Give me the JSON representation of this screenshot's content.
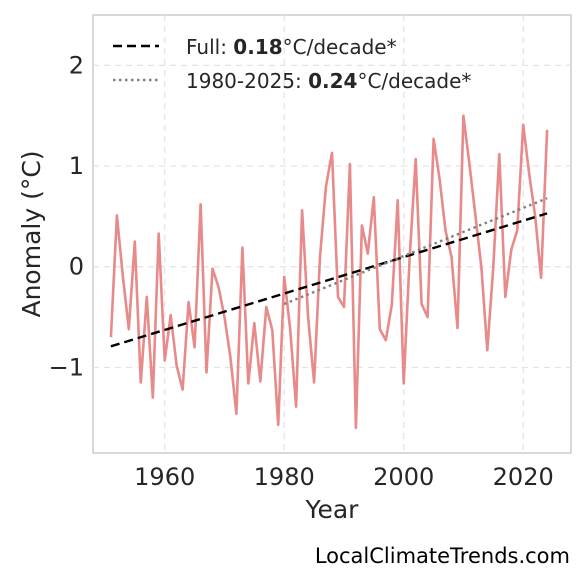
{
  "chart_data": {
    "type": "line",
    "xlabel": "Year",
    "ylabel": "Anomaly (°C)",
    "xlim": [
      1948,
      2028
    ],
    "ylim": [
      -1.85,
      2.5
    ],
    "xticks": [
      1960,
      1980,
      2000,
      2020
    ],
    "yticks": [
      2,
      1,
      0,
      -1
    ],
    "ytick_labels": [
      "2",
      "1",
      "0",
      "−1"
    ],
    "grid": true,
    "legend_position": "top-left",
    "series": [
      {
        "color": "#e8898a",
        "x": [
          1951,
          1952,
          1953,
          1954,
          1955,
          1956,
          1957,
          1958,
          1959,
          1960,
          1961,
          1962,
          1963,
          1964,
          1965,
          1966,
          1967,
          1968,
          1969,
          1970,
          1971,
          1972,
          1973,
          1974,
          1975,
          1976,
          1977,
          1978,
          1979,
          1980,
          1981,
          1982,
          1983,
          1984,
          1985,
          1986,
          1987,
          1988,
          1989,
          1990,
          1991,
          1992,
          1993,
          1994,
          1995,
          1996,
          1997,
          1998,
          1999,
          2000,
          2001,
          2002,
          2003,
          2004,
          2005,
          2006,
          2007,
          2008,
          2009,
          2010,
          2011,
          2012,
          2013,
          2014,
          2015,
          2016,
          2017,
          2018,
          2019,
          2020,
          2021,
          2022,
          2023,
          2024
        ],
        "values": [
          -0.7,
          0.51,
          -0.1,
          -0.62,
          0.25,
          -1.15,
          -0.3,
          -1.3,
          0.33,
          -0.93,
          -0.48,
          -0.98,
          -1.22,
          -0.35,
          -0.8,
          0.62,
          -1.05,
          -0.02,
          -0.2,
          -0.5,
          -0.9,
          -1.46,
          0.19,
          -1.16,
          -0.56,
          -1.14,
          -0.4,
          -0.63,
          -1.57,
          -0.1,
          -0.62,
          -1.39,
          0.56,
          -0.5,
          -1.15,
          0.1,
          0.8,
          1.13,
          -0.3,
          -0.4,
          1.02,
          -1.6,
          0.41,
          0.13,
          0.69,
          -0.62,
          -0.73,
          -0.38,
          0.66,
          -1.16,
          0.1,
          1.07,
          -0.37,
          -0.5,
          1.27,
          0.87,
          0.36,
          0.1,
          -0.61,
          1.5,
          1.02,
          0.51,
          -0.01,
          -0.83,
          0.0,
          1.12,
          -0.3,
          0.17,
          0.36,
          1.41,
          0.92,
          0.5,
          -0.11,
          1.36
        ]
      },
      {
        "name": "Full: 0.18°C/decade*",
        "style": "dashed",
        "color": "#000000",
        "x": [
          1951,
          2024
        ],
        "values": [
          -0.79,
          0.53
        ]
      },
      {
        "name": "1980-2025: 0.24°C/decade*",
        "style": "dotted",
        "color": "#808080",
        "x": [
          1980,
          2024
        ],
        "values": [
          -0.37,
          0.68
        ]
      }
    ],
    "legend": [
      {
        "prefix": "Full: ",
        "bold": "0.18",
        "suffix": "°C/decade*",
        "style": "dashed",
        "color": "#000000"
      },
      {
        "prefix": "1980-2025: ",
        "bold": "0.24",
        "suffix": "°C/decade*",
        "style": "dotted",
        "color": "#808080"
      }
    ]
  },
  "footer": {
    "source": "LocalClimateTrends.com"
  }
}
